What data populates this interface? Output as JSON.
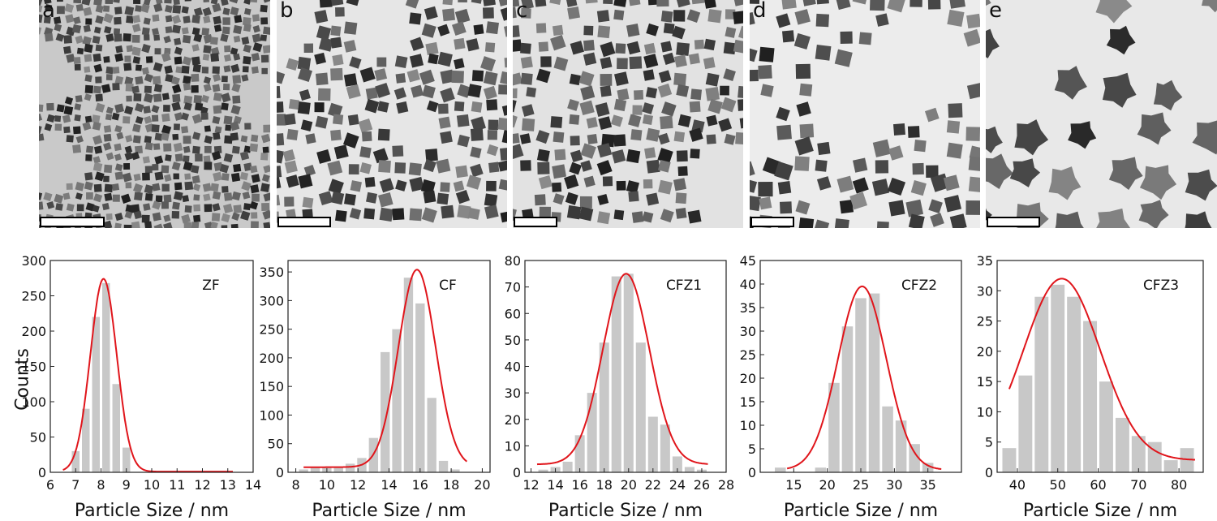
{
  "micrographs": [
    {
      "letter": "a",
      "bg": "#c9c9c9",
      "density": 0.62,
      "size": 9,
      "shape": "cube"
    },
    {
      "letter": "b",
      "bg": "#e6e6e6",
      "density": 0.55,
      "size": 14,
      "shape": "cube"
    },
    {
      "letter": "c",
      "bg": "#e2e2e2",
      "density": 0.6,
      "size": 14,
      "shape": "cube"
    },
    {
      "letter": "d",
      "bg": "#ececec",
      "density": 0.45,
      "size": 17,
      "shape": "cube"
    },
    {
      "letter": "e",
      "bg": "#e8e8e8",
      "density": 0.55,
      "size": 40,
      "shape": "star"
    }
  ],
  "y_axis_label": "Counts",
  "x_axis_label": "Particle Size / nm",
  "colors": {
    "bar": "#c8c8c8",
    "fit": "#e0151b",
    "axis": "#222222"
  },
  "chart_data": [
    {
      "type": "bar",
      "label": "ZF",
      "xlim": [
        6,
        14
      ],
      "ylim": [
        0,
        300
      ],
      "xticks": [
        6,
        7,
        8,
        9,
        10,
        11,
        12,
        13,
        14
      ],
      "yticks": [
        0,
        50,
        100,
        150,
        200,
        250,
        300
      ],
      "bin_width": 0.4,
      "bins": [
        6.6,
        7.0,
        7.4,
        7.8,
        8.2,
        8.6,
        9.0,
        9.4
      ],
      "values": [
        0,
        30,
        90,
        220,
        268,
        125,
        35,
        0
      ],
      "fit": {
        "mu": 8.1,
        "sigma": 0.52,
        "amp": 273,
        "base": 1,
        "xmin": 6.5,
        "xmax": 13.2
      }
    },
    {
      "type": "bar",
      "label": "CF",
      "xlim": [
        7.5,
        20.5
      ],
      "ylim": [
        0,
        370
      ],
      "xticks": [
        8,
        10,
        12,
        14,
        16,
        18,
        20
      ],
      "yticks": [
        0,
        50,
        100,
        150,
        200,
        250,
        300,
        350
      ],
      "bin_width": 0.75,
      "bins": [
        8.5,
        9.25,
        10.0,
        10.75,
        11.5,
        12.25,
        13.0,
        13.75,
        14.5,
        15.25,
        16.0,
        16.75,
        17.5,
        18.25,
        19.0,
        19.75
      ],
      "values": [
        5,
        8,
        8,
        10,
        15,
        25,
        60,
        210,
        250,
        340,
        295,
        130,
        20,
        5,
        0,
        0
      ],
      "fit": {
        "mu": 15.8,
        "sigma": 1.2,
        "amp": 345,
        "base": 9,
        "xmin": 8.5,
        "xmax": 19.0
      }
    },
    {
      "type": "bar",
      "label": "CFZ1",
      "xlim": [
        11.5,
        28
      ],
      "ylim": [
        0,
        80
      ],
      "xticks": [
        12,
        14,
        16,
        18,
        20,
        22,
        24,
        26,
        28
      ],
      "yticks": [
        0,
        10,
        20,
        30,
        40,
        50,
        60,
        70,
        80
      ],
      "bin_width": 1.0,
      "bins": [
        13,
        14,
        15,
        16,
        17,
        18,
        19,
        20,
        21,
        22,
        23,
        24,
        25,
        26
      ],
      "values": [
        1,
        2,
        4,
        14,
        30,
        49,
        74,
        75,
        49,
        21,
        18,
        6,
        2,
        1
      ],
      "fit": {
        "mu": 19.8,
        "sigma": 1.9,
        "amp": 72,
        "base": 3,
        "xmin": 12.5,
        "xmax": 26.5
      }
    },
    {
      "type": "bar",
      "label": "CFZ2",
      "xlim": [
        10,
        40
      ],
      "ylim": [
        0,
        45
      ],
      "xticks": [
        15,
        20,
        25,
        30,
        35
      ],
      "yticks": [
        0,
        5,
        10,
        15,
        20,
        25,
        30,
        35,
        40,
        45
      ],
      "bin_width": 2.0,
      "bins": [
        13,
        15,
        17,
        19,
        21,
        23,
        25,
        27,
        29,
        31,
        33,
        35
      ],
      "values": [
        1,
        0,
        0,
        1,
        19,
        31,
        37,
        38,
        14,
        11,
        6,
        2
      ],
      "fit": {
        "mu": 25.2,
        "sigma": 3.6,
        "amp": 39,
        "base": 0.5,
        "xmin": 14,
        "xmax": 37
      }
    },
    {
      "type": "bar",
      "label": "CFZ3",
      "xlim": [
        35,
        86
      ],
      "ylim": [
        0,
        35
      ],
      "xticks": [
        40,
        50,
        60,
        70,
        80
      ],
      "yticks": [
        0,
        5,
        10,
        15,
        20,
        25,
        30,
        35
      ],
      "bin_width": 4.0,
      "bins": [
        38,
        42,
        46,
        50,
        54,
        58,
        62,
        66,
        70,
        74,
        78,
        82
      ],
      "values": [
        4,
        16,
        29,
        31,
        29,
        25,
        15,
        9,
        6,
        5,
        2,
        4
      ],
      "fit": {
        "mu": 51,
        "sigma": 9.5,
        "amp": 30,
        "base": 2,
        "xmin": 38,
        "xmax": 84
      }
    }
  ]
}
